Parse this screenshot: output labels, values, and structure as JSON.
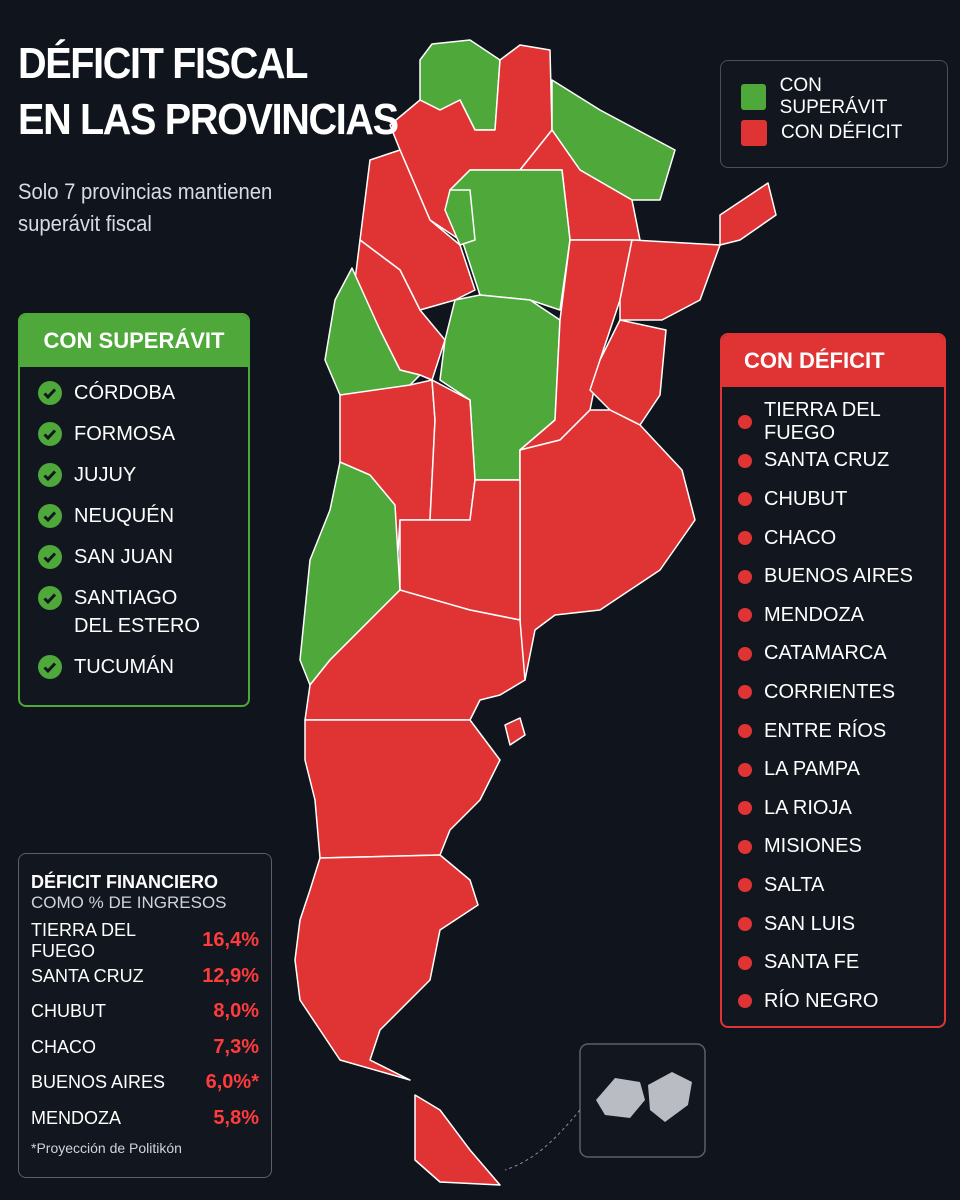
{
  "header": {
    "title_line1": "DÉFICIT FISCAL",
    "title_line2": "EN LAS PROVINCIAS",
    "subtitle": "Solo 7 provincias mantienen superávit fiscal"
  },
  "legend": {
    "items": [
      "CON SUPERÁVIT",
      "CON DÉFICIT"
    ]
  },
  "surplus": {
    "title": "CON SUPERÁVIT",
    "items": [
      "CÓRDOBA",
      "FORMOSA",
      "JUJUY",
      "NEUQUÉN",
      "SAN JUAN",
      "SANTIAGO DEL ESTERO",
      "TUCUMÁN"
    ]
  },
  "deficit": {
    "title": "CON DÉFICIT",
    "items": [
      "TIERRA DEL FUEGO",
      "SANTA CRUZ",
      "CHUBUT",
      "CHACO",
      "BUENOS AIRES",
      "MENDOZA",
      "CATAMARCA",
      "CORRIENTES",
      "ENTRE RÍOS",
      "LA PAMPA",
      "LA RIOJA",
      "MISIONES",
      "SALTA",
      "SAN LUIS",
      "SANTA FE",
      "RÍO NEGRO"
    ]
  },
  "financial_deficit": {
    "title": "DÉFICIT FINANCIERO",
    "subtitle": "COMO % DE INGRESOS",
    "rows": [
      [
        "TIERRA DEL FUEGO",
        "16,4%"
      ],
      [
        "SANTA CRUZ",
        "12,9%"
      ],
      [
        "CHUBUT",
        "8,0%"
      ],
      [
        "CHACO",
        "7,3%"
      ],
      [
        "BUENOS AIRES",
        "6,0%*"
      ],
      [
        "MENDOZA",
        "5,8%"
      ]
    ],
    "note": "*Proyección de Politikón"
  }
}
